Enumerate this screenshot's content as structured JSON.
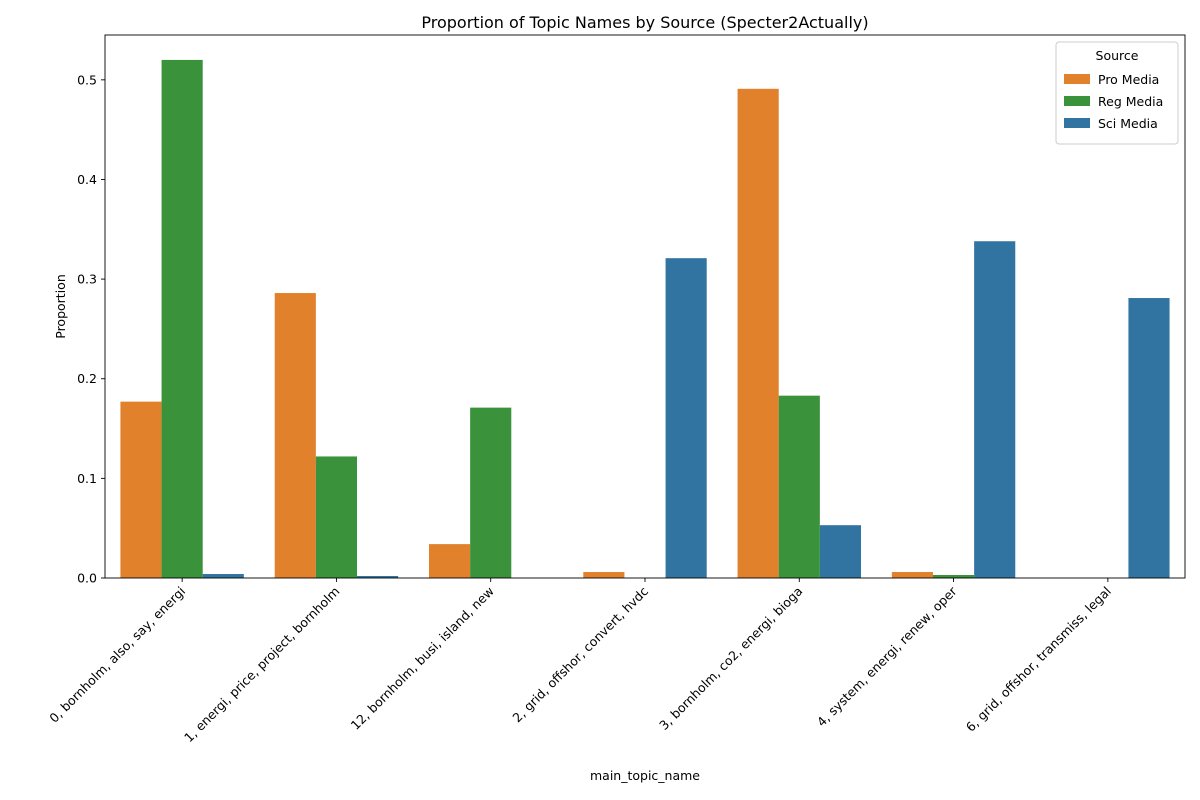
{
  "chart_data": {
    "type": "bar",
    "title": "Proportion of Topic Names by Source (Specter2Actually)",
    "xlabel": "main_topic_name",
    "ylabel": "Proportion",
    "ylim": [
      0,
      0.545
    ],
    "yticks": [
      0.0,
      0.1,
      0.2,
      0.3,
      0.4,
      0.5
    ],
    "grid": false,
    "legend": {
      "title": "Source",
      "position": "top-right"
    },
    "categories": [
      "0, bornholm, also, say, energi",
      "1, energi, price, project, bornholm",
      "12, bornholm, busi, island, new",
      "2, grid, offshor, convert, hvdc",
      "3, bornholm, co2, energi, bioga",
      "4, system, energi, renew, oper",
      "6, grid, offshor, transmiss, legal"
    ],
    "series": [
      {
        "name": "Pro Media",
        "color": "#e1812c",
        "values": [
          0.177,
          0.286,
          0.034,
          0.006,
          0.491,
          0.006,
          0.0
        ]
      },
      {
        "name": "Reg Media",
        "color": "#3a923a",
        "values": [
          0.52,
          0.122,
          0.171,
          0.0,
          0.183,
          0.003,
          0.0
        ]
      },
      {
        "name": "Sci Media",
        "color": "#3274a1",
        "values": [
          0.004,
          0.002,
          0.0,
          0.321,
          0.053,
          0.338,
          0.281
        ]
      }
    ]
  }
}
